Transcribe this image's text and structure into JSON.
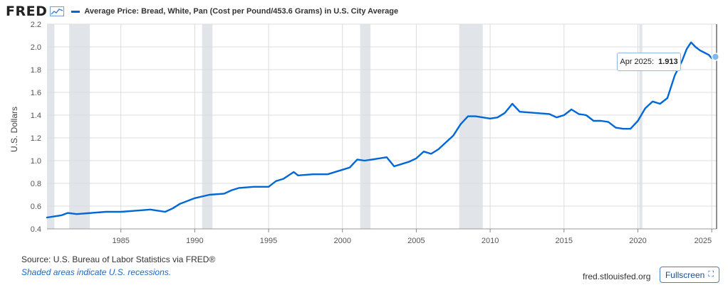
{
  "header": {
    "logo": "FRED",
    "legend_label": "Average Price: Bread, White, Pan (Cost per Pound/453.6 Grams) in U.S. City Average",
    "series_color": "#0068d6"
  },
  "footer": {
    "source": "U.S. Bureau of Labor Statistics via FRED®",
    "note": "Shaded areas indicate U.S. recessions.",
    "url": "fred.stlouisfed.org",
    "fullscreen_label": "Fullscreen",
    "fullscreen_icon": "expand-icon"
  },
  "tooltip": {
    "date": "Apr 2025:",
    "value": "1.913"
  },
  "chart_data": {
    "type": "line",
    "title": "",
    "xlabel": "",
    "ylabel": "U.S. Dollars",
    "xlim": [
      1980.0,
      2025.33
    ],
    "ylim": [
      0.4,
      2.2
    ],
    "yticks": [
      "0.4",
      "0.6",
      "0.8",
      "1.0",
      "1.2",
      "1.4",
      "1.6",
      "1.8",
      "2.0",
      "2.2"
    ],
    "xticks": [
      "1985",
      "1990",
      "1995",
      "2000",
      "2005",
      "2010",
      "2015",
      "2020",
      "2025"
    ],
    "grid": true,
    "recessions": [
      [
        1980.0,
        1980.5
      ],
      [
        1981.5,
        1982.9
      ],
      [
        1990.5,
        1991.2
      ],
      [
        2001.2,
        2001.9
      ],
      [
        2007.9,
        2009.5
      ],
      [
        2020.1,
        2020.3
      ]
    ],
    "series": [
      {
        "name": "Average Price: Bread, White, Pan (Cost per Pound/453.6 Grams) in U.S. City Average",
        "color": "#0068d6",
        "x": [
          1980.0,
          1980.5,
          1981.0,
          1981.4,
          1982.0,
          1983.0,
          1984.0,
          1985.0,
          1986.0,
          1987.0,
          1987.5,
          1988.0,
          1988.5,
          1989.0,
          1990.0,
          1991.0,
          1992.0,
          1992.5,
          1993.0,
          1994.0,
          1995.0,
          1995.5,
          1996.0,
          1996.7,
          1997.0,
          1998.0,
          1999.0,
          2000.0,
          2000.5,
          2001.0,
          2001.5,
          2002.0,
          2002.5,
          2003.0,
          2003.5,
          2004.0,
          2004.5,
          2005.0,
          2005.5,
          2006.0,
          2006.5,
          2007.0,
          2007.5,
          2008.0,
          2008.5,
          2009.0,
          2010.0,
          2010.5,
          2011.0,
          2011.5,
          2012.0,
          2013.0,
          2014.0,
          2014.5,
          2015.0,
          2015.5,
          2016.0,
          2016.5,
          2017.0,
          2017.5,
          2018.0,
          2018.5,
          2019.0,
          2019.5,
          2020.0,
          2020.5,
          2021.0,
          2021.5,
          2022.0,
          2022.5,
          2023.0,
          2023.3,
          2023.6,
          2023.9,
          2024.2,
          2024.5,
          2024.8,
          2025.0,
          2025.25
        ],
        "y": [
          0.5,
          0.51,
          0.52,
          0.54,
          0.53,
          0.54,
          0.55,
          0.55,
          0.56,
          0.57,
          0.56,
          0.55,
          0.58,
          0.62,
          0.67,
          0.7,
          0.71,
          0.74,
          0.76,
          0.77,
          0.77,
          0.82,
          0.84,
          0.9,
          0.87,
          0.88,
          0.88,
          0.92,
          0.94,
          1.01,
          1.0,
          1.01,
          1.02,
          1.03,
          0.95,
          0.97,
          0.99,
          1.02,
          1.08,
          1.06,
          1.1,
          1.16,
          1.22,
          1.32,
          1.39,
          1.39,
          1.37,
          1.38,
          1.42,
          1.5,
          1.43,
          1.42,
          1.41,
          1.38,
          1.4,
          1.45,
          1.41,
          1.4,
          1.35,
          1.35,
          1.34,
          1.29,
          1.28,
          1.28,
          1.35,
          1.46,
          1.52,
          1.5,
          1.55,
          1.75,
          1.88,
          1.98,
          2.04,
          2.0,
          1.97,
          1.95,
          1.93,
          1.9,
          1.913
        ]
      }
    ]
  }
}
